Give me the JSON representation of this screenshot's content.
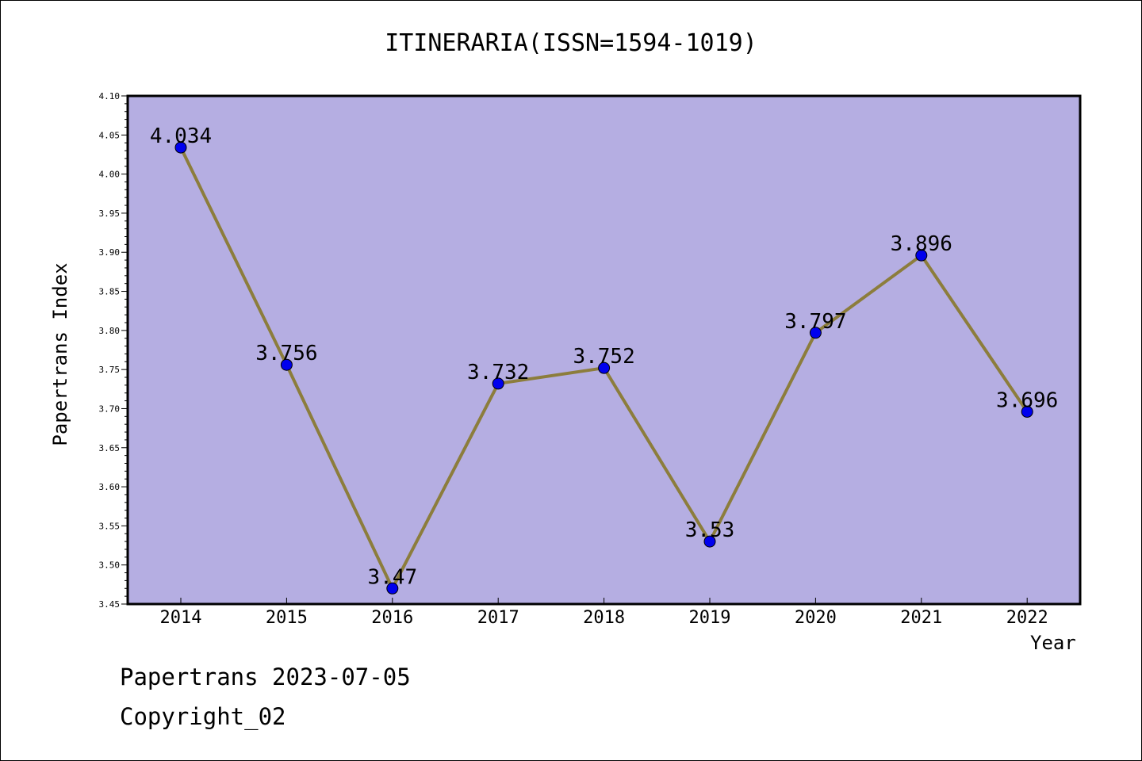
{
  "chart_data": {
    "type": "line",
    "title": "ITINERARIA(ISSN=1594-1019)",
    "xlabel": "Year",
    "ylabel": "Papertrans Index",
    "categories": [
      "2014",
      "2015",
      "2016",
      "2017",
      "2018",
      "2019",
      "2020",
      "2021",
      "2022"
    ],
    "series": [
      {
        "values": [
          4.034,
          3.756,
          3.47,
          3.732,
          3.752,
          3.53,
          3.797,
          3.896,
          3.696
        ]
      }
    ],
    "data_labels": [
      "4.034",
      "3.756",
      "3.47",
      "3.732",
      "3.752",
      "3.53",
      "3.797",
      "3.896",
      "3.696"
    ],
    "ylim": [
      3.45,
      4.1
    ],
    "yticks": [
      "3.45",
      "3.50",
      "3.55",
      "3.60",
      "3.65",
      "3.70",
      "3.75",
      "3.80",
      "3.85",
      "3.90",
      "3.95",
      "4.00",
      "4.05",
      "4.10"
    ],
    "grid": false,
    "colors": {
      "plot_bg": "#b5aee2",
      "line": "#8c7d3c",
      "marker": "#0000ee",
      "marker_edge": "#000000"
    }
  },
  "footer": {
    "date_line": "Papertrans 2023-07-05",
    "copyright": "Copyright_02"
  }
}
